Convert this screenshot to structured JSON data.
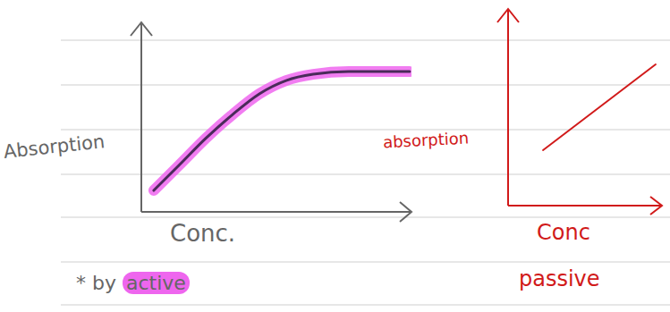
{
  "chart_data": [
    {
      "type": "line",
      "y_label": "Absorption",
      "x_label": "Conc.",
      "annotation": "* by active",
      "x": [
        4.6,
        13.9,
        23.8,
        33.8,
        43.7,
        53.6,
        63.6,
        76.8,
        90,
        99.3
      ],
      "values": [
        11.3,
        24.5,
        38.7,
        51.4,
        62.3,
        69.3,
        72.6,
        74,
        74,
        74
      ],
      "color": "#ee66ee",
      "xlim": [
        0,
        100
      ],
      "ylim": [
        0,
        100
      ],
      "tick_labels": false
    },
    {
      "type": "line",
      "y_label": "absorption",
      "x_label": "Conc",
      "annotation": "passive",
      "x": [
        22.7,
        59.3,
        95.9
      ],
      "values": [
        28.2,
        50,
        71.8
      ],
      "color": "#d11a1a",
      "xlim": [
        0,
        100
      ],
      "ylim": [
        0,
        100
      ],
      "tick_labels": false
    }
  ]
}
